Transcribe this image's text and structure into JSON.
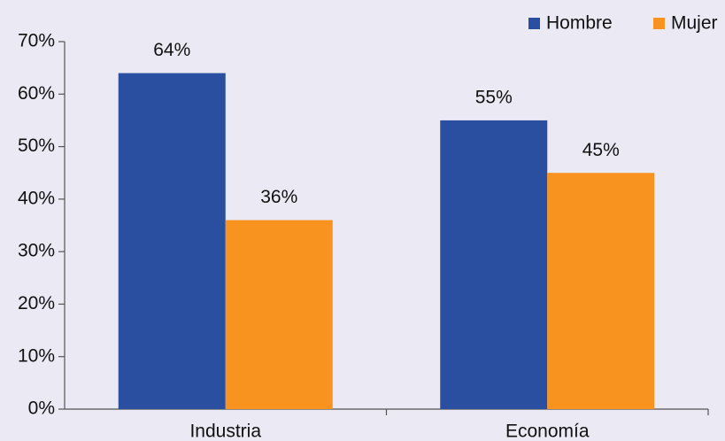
{
  "chart_data": {
    "type": "bar",
    "categories": [
      "Industria",
      "Economía"
    ],
    "series": [
      {
        "name": "Hombre",
        "color": "#2a4fa1",
        "values": [
          64,
          55
        ],
        "value_labels": [
          "64%",
          "55%"
        ]
      },
      {
        "name": "Mujer",
        "color": "#f7931e",
        "values": [
          36,
          45
        ],
        "value_labels": [
          "36%",
          "45%"
        ]
      }
    ],
    "ylim": [
      0,
      70
    ],
    "yticks": [
      {
        "value": 0,
        "label": "0%"
      },
      {
        "value": 10,
        "label": "10%"
      },
      {
        "value": 20,
        "label": "20%"
      },
      {
        "value": 30,
        "label": "30%"
      },
      {
        "value": 40,
        "label": "40%"
      },
      {
        "value": 50,
        "label": "50%"
      },
      {
        "value": 60,
        "label": "60%"
      },
      {
        "value": 70,
        "label": "70%"
      }
    ],
    "grid": false,
    "legend": "top-right"
  }
}
